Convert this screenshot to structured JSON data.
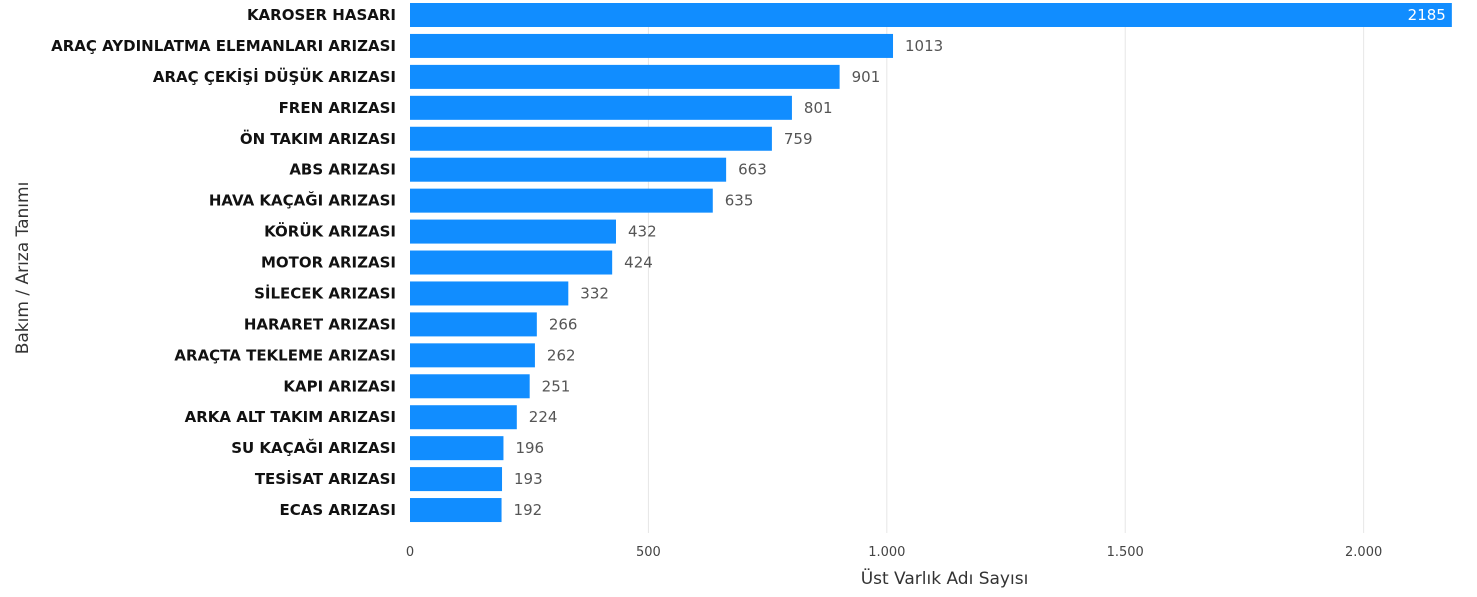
{
  "chart_data": {
    "type": "bar",
    "orientation": "horizontal",
    "categories": [
      "KAROSER HASARI",
      "ARAÇ AYDINLATMA ELEMANLARI ARIZASI",
      "ARAÇ ÇEKİŞİ DÜŞÜK ARIZASI",
      "FREN ARIZASI",
      "ÖN TAKIM ARIZASI",
      "ABS ARIZASI",
      "HAVA KAÇAĞI ARIZASI",
      "KÖRÜK ARIZASI",
      "MOTOR ARIZASI",
      "SİLECEK ARIZASI",
      "HARARET ARIZASI",
      "ARAÇTA TEKLEME ARIZASI",
      "KAPI ARIZASI",
      "ARKA ALT TAKIM ARIZASI",
      "SU KAÇAĞI ARIZASI",
      "TESİSAT ARIZASI",
      "ECAS ARIZASI"
    ],
    "values": [
      2185,
      1013,
      901,
      801,
      759,
      663,
      635,
      432,
      424,
      332,
      266,
      262,
      251,
      224,
      196,
      193,
      192
    ],
    "xlabel": "Üst Varlık Adı Sayısı",
    "ylabel": "Bakım / Arıza Tanımı",
    "xlim": [
      0,
      2200
    ],
    "xticks": [
      0,
      500,
      1000,
      1500,
      2000
    ],
    "xtick_labels": [
      "0",
      "500",
      "1.000",
      "1.500",
      "2.000"
    ],
    "grid": true,
    "bar_color": "#118DFF",
    "data_labels": true
  }
}
